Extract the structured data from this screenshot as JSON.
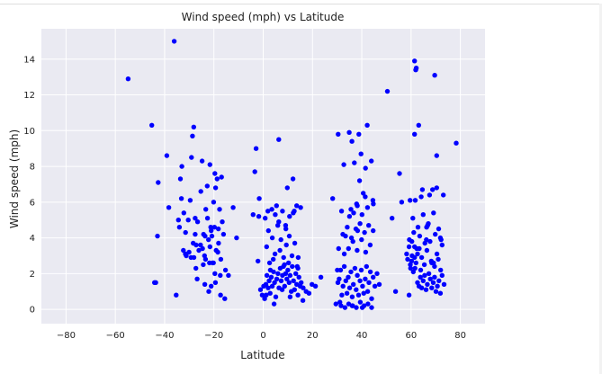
{
  "chart_data": {
    "type": "scatter",
    "title": "Wind speed (mph) vs Latitude",
    "xlabel": "Latitude",
    "ylabel": "Wind speed (mph)",
    "xlim": [
      -90,
      90
    ],
    "ylim": [
      -0.8,
      15.7
    ],
    "xticks": [
      -80,
      -60,
      -40,
      -20,
      0,
      20,
      40,
      60,
      80
    ],
    "yticks": [
      0,
      2,
      4,
      6,
      8,
      10,
      12,
      14
    ],
    "grid": true,
    "background": "#EAEAF2",
    "grid_color": "#ffffff",
    "marker_color": "#0000FF",
    "x": [
      -54.8,
      -45.2,
      -43.6,
      -42.9,
      -42.6,
      -36.1,
      -35.3,
      -44.1,
      -39.1,
      -38.3,
      -34.4,
      -33.6,
      -33.2,
      -33.0,
      -32.2,
      -31.5,
      -30.1,
      -29.6,
      -29.1,
      -28.7,
      -28.2,
      -27.6,
      -27.2,
      -26.6,
      -34.0,
      -25.3,
      -24.8,
      -24.2,
      -23.8,
      -23.3,
      -22.7,
      -22.2,
      -21.6,
      -21.1,
      -20.6,
      -20.1,
      -19.6,
      -19.1,
      -18.7,
      -18.2,
      -17.7,
      -17.2,
      -16.6,
      -24.6,
      -22.6,
      -20.2,
      -18.1,
      -16.1,
      -15.3,
      -14.1,
      -12.2,
      -10.8,
      -31.2,
      -28.4,
      -26.1,
      -23.4,
      -21.3,
      -19.6,
      -17.4,
      -15.6,
      -30.4,
      -27.6,
      -25.4,
      -21.8,
      -19.3,
      -16.9,
      -29.3,
      -24.3,
      -21.1,
      -18.4,
      -26.8,
      -22.1,
      -19.4,
      -17.3,
      -23.7,
      -21.6,
      -19.8,
      -20.8,
      -31.6,
      -27.3,
      -23.6,
      -28.1,
      -32.4,
      -2.9,
      -3.4,
      -1.6,
      -4.1,
      -2.1,
      -1.1,
      -0.4,
      0.2,
      0.6,
      1.1,
      1.5,
      2.0,
      2.4,
      2.8,
      3.3,
      3.7,
      4.2,
      4.6,
      5.1,
      5.5,
      6.0,
      6.4,
      6.9,
      7.3,
      7.8,
      8.2,
      8.7,
      9.1,
      9.6,
      10.0,
      10.5,
      10.9,
      11.4,
      11.8,
      12.3,
      12.7,
      13.2,
      13.6,
      14.1,
      14.5,
      15.0,
      15.4,
      16.2,
      17.4,
      18.6,
      19.8,
      21.2,
      23.4,
      1.4,
      2.6,
      3.7,
      4.8,
      5.9,
      7.2,
      8.3,
      9.4,
      10.6,
      11.7,
      12.8,
      14.1,
      15.2,
      0.8,
      2.1,
      3.5,
      4.9,
      6.3,
      7.8,
      9.2,
      10.7,
      12.2,
      13.6,
      -1.8,
      1.9,
      5.4,
      9.1,
      12.6,
      16.1,
      1.2,
      4.4,
      7.7,
      10.9,
      14.2,
      2.9,
      6.8,
      10.3,
      13.8,
      4.1,
      8.6,
      12.1,
      6.3,
      9.8,
      28.2,
      29.5,
      30.3,
      30.8,
      31.4,
      31.9,
      32.4,
      32.9,
      33.5,
      34.0,
      34.5,
      35.1,
      35.6,
      36.1,
      36.6,
      37.2,
      37.7,
      38.2,
      38.7,
      39.3,
      39.8,
      40.3,
      40.8,
      41.4,
      41.9,
      42.4,
      42.9,
      43.5,
      44.0,
      44.6,
      45.3,
      46.2,
      47.1,
      30.1,
      31.6,
      33.2,
      34.7,
      36.3,
      37.8,
      39.4,
      40.9,
      42.5,
      44.0,
      31.1,
      32.9,
      34.6,
      36.4,
      38.1,
      39.9,
      41.6,
      43.4,
      30.6,
      32.3,
      34.1,
      35.8,
      37.6,
      39.3,
      41.1,
      42.8,
      44.6,
      33.4,
      35.6,
      37.9,
      40.1,
      42.3,
      44.5,
      31.8,
      35.0,
      38.2,
      41.4,
      44.7,
      36.7,
      39.1,
      41.5,
      43.9,
      32.7,
      37.0,
      40.6,
      30.4,
      34.9,
      38.8,
      42.2,
      36.0,
      39.7,
      55.3,
      58.6,
      59.2,
      59.7,
      60.3,
      60.9,
      61.4,
      62.0,
      62.6,
      63.2,
      63.8,
      64.3,
      64.9,
      65.5,
      66.1,
      66.6,
      67.2,
      67.8,
      68.4,
      69.0,
      69.5,
      70.1,
      70.7,
      71.3,
      71.9,
      72.6,
      73.4,
      58.2,
      60.2,
      62.3,
      64.3,
      66.4,
      68.4,
      70.5,
      72.6,
      59.3,
      61.4,
      63.5,
      65.6,
      67.7,
      69.8,
      71.9,
      60.7,
      62.8,
      64.9,
      67.0,
      69.1,
      71.2,
      61.1,
      63.9,
      66.7,
      69.5,
      72.2,
      59.8,
      62.6,
      65.4,
      68.2,
      71.0,
      61.7,
      64.6,
      67.5,
      70.4,
      60.4,
      63.3,
      66.2,
      69.1,
      72.0,
      64.1,
      68.7,
      53.7,
      56.2,
      61.4,
      61.9,
      61.4,
      62.1,
      69.6,
      78.3,
      59.6,
      70.4,
      66.3,
      63.1,
      73.1,
      61.6,
      59.2,
      50.4,
      52.3,
      40.2,
      36.1,
      38.3
    ],
    "y": [
      12.9,
      10.3,
      1.5,
      4.1,
      7.1,
      15.0,
      0.8,
      1.5,
      8.6,
      5.7,
      5.0,
      7.3,
      6.2,
      8.0,
      5.4,
      4.3,
      3.2,
      6.1,
      8.5,
      9.7,
      10.2,
      5.1,
      3.6,
      4.9,
      4.6,
      6.6,
      8.3,
      4.2,
      3.0,
      5.6,
      6.9,
      3.9,
      8.1,
      4.4,
      2.6,
      6.0,
      7.6,
      3.3,
      7.3,
      4.5,
      5.6,
      2.8,
      4.9,
      3.4,
      5.1,
      2.6,
      3.7,
      4.2,
      2.2,
      1.9,
      5.7,
      4.0,
      3.0,
      3.7,
      3.3,
      2.8,
      4.6,
      2.0,
      1.9,
      0.6,
      5.0,
      4.2,
      3.6,
      2.6,
      6.8,
      7.4,
      2.9,
      2.5,
      1.3,
      3.2,
      1.7,
      1.0,
      1.5,
      0.8,
      1.4,
      3.5,
      4.6,
      4.1,
      3.1,
      2.3,
      4.1,
      2.9,
      3.3,
      9.0,
      7.7,
      6.2,
      5.3,
      2.7,
      1.1,
      0.8,
      1.3,
      0.6,
      1.4,
      1.9,
      1.2,
      1.6,
      0.9,
      1.8,
      1.3,
      2.1,
      1.5,
      0.7,
      1.7,
      2.0,
      1.2,
      2.3,
      1.6,
      1.9,
      2.4,
      1.3,
      2.0,
      1.7,
      2.2,
      1.5,
      1.9,
      1.0,
      2.4,
      1.6,
      1.1,
      2.0,
      1.4,
      0.8,
      1.8,
      1.3,
      1.5,
      1.2,
      1.0,
      0.9,
      1.4,
      1.3,
      1.8,
      3.5,
      2.6,
      4.0,
      3.1,
      4.7,
      3.9,
      2.9,
      3.6,
      4.1,
      3.0,
      3.7,
      2.3,
      5.7,
      5.1,
      4.4,
      5.6,
      5.3,
      4.9,
      5.5,
      4.5,
      5.2,
      5.4,
      5.8,
      5.2,
      5.5,
      5.8,
      4.7,
      5.5,
      0.5,
      0.8,
      0.3,
      1.1,
      0.7,
      2.9,
      2.2,
      3.3,
      2.6,
      2.4,
      2.8,
      2.5,
      7.3,
      9.5,
      6.8,
      6.2,
      0.3,
      1.5,
      1.7,
      2.2,
      0.8,
      1.3,
      2.4,
      1.6,
      0.9,
      1.8,
      1.2,
      2.1,
      0.7,
      1.4,
      2.3,
      1.1,
      1.9,
      0.8,
      1.6,
      2.2,
      1.3,
      0.9,
      1.7,
      2.4,
      1.0,
      1.5,
      2.1,
      0.6,
      1.8,
      1.3,
      2.0,
      1.4,
      2.2,
      0.2,
      0.1,
      0.3,
      0.2,
      0.1,
      0.4,
      0.2,
      0.3,
      0.1,
      0.4,
      3.1,
      3.4,
      3.8,
      3.3,
      3.9,
      3.2,
      3.6,
      3.4,
      4.2,
      4.6,
      4.0,
      4.5,
      4.8,
      4.3,
      4.7,
      4.4,
      4.1,
      5.6,
      5.9,
      5.3,
      5.7,
      6.1,
      5.5,
      5.2,
      5.8,
      6.3,
      5.9,
      5.4,
      7.2,
      7.9,
      8.3,
      8.1,
      8.2,
      6.5,
      9.8,
      9.9,
      9.8,
      10.3,
      9.4,
      8.7,
      7.6,
      2.8,
      3.5,
      2.5,
      3.8,
      2.1,
      2.9,
      2.6,
      1.5,
      1.3,
      1.8,
      1.2,
      1.6,
      1.9,
      1.1,
      1.4,
      2.0,
      1.7,
      1.2,
      1.5,
      1.8,
      1.0,
      1.3,
      1.6,
      0.9,
      1.9,
      1.4,
      3.1,
      2.7,
      3.4,
      2.9,
      3.3,
      2.6,
      3.1,
      3.6,
      3.9,
      3.5,
      4.1,
      3.7,
      3.8,
      4.2,
      4.0,
      5.1,
      4.6,
      5.3,
      4.8,
      5.4,
      4.5,
      4.3,
      2.2,
      4.7,
      2.4,
      3.9,
      2.3,
      3.1,
      2.5,
      2.7,
      2.8,
      6.1,
      6.7,
      6.4,
      6.8,
      3.0,
      3.4,
      3.9,
      2.6,
      2.2,
      6.3,
      6.7,
      1.0,
      6.0,
      9.8,
      13.4,
      13.9,
      13.5,
      13.1,
      9.3,
      6.1,
      8.6,
      4.6,
      10.3,
      6.4,
      2.3,
      0.8,
      12.2,
      5.1,
      0.1,
      0.2,
      4.4
    ]
  }
}
